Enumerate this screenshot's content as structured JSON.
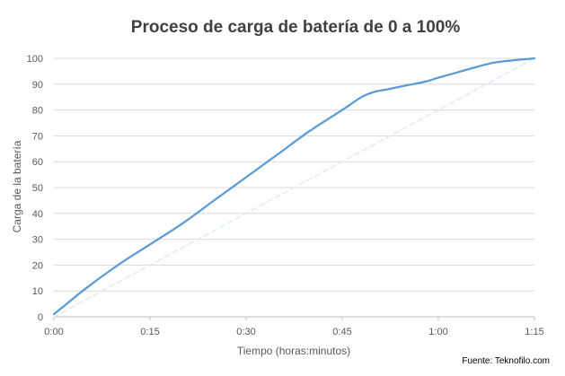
{
  "chart_data": {
    "type": "line",
    "title": "Proceso de carga de batería de 0 a 100%",
    "xlabel": "Tiempo (horas:minutos)",
    "ylabel": "Carga de la batería",
    "x_ticks": [
      "0:00",
      "0:15",
      "0:30",
      "0:45",
      "1:00",
      "1:15"
    ],
    "y_ticks": [
      "0",
      "10",
      "20",
      "30",
      "40",
      "50",
      "60",
      "70",
      "80",
      "90",
      "100"
    ],
    "xlim": [
      0,
      75
    ],
    "ylim": [
      0,
      100
    ],
    "grid": "horizontal",
    "source": "Fuente: Teknofilo.com",
    "series": [
      {
        "style": "solid",
        "color": "#5b9bd5",
        "x": [
          0,
          2,
          5,
          10,
          15,
          20,
          25,
          30,
          35,
          40,
          45,
          48,
          50,
          52,
          55,
          58,
          60,
          65,
          68,
          70,
          75
        ],
        "y": [
          1,
          5,
          11,
          20,
          28,
          36,
          45,
          54,
          63,
          72,
          80,
          85,
          87,
          88,
          89.5,
          91,
          92.5,
          96,
          98,
          98.8,
          100
        ]
      },
      {
        "style": "dashed",
        "color": "#deebf7",
        "x": [
          0,
          75
        ],
        "y": [
          0,
          100
        ]
      }
    ]
  }
}
